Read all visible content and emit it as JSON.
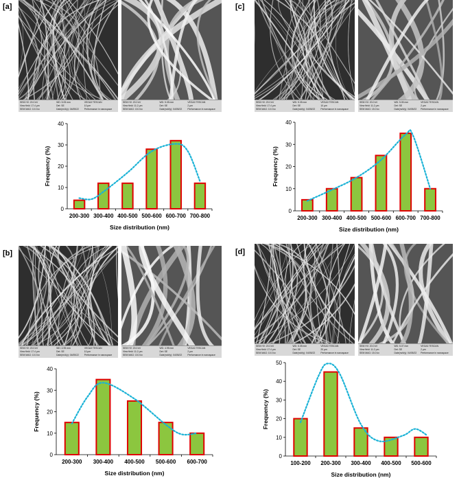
{
  "panels": [
    {
      "label": "[a]",
      "sem_left": {
        "line1": [
          "SEM HV: 20.0 kV",
          "WD: 5.05 mm",
          "VEGA3 TESCAN"
        ],
        "line2": [
          "View field: 17.4 μm",
          "Det: SE",
          "10 μm"
        ],
        "line3": [
          "SEM MAG: 10.0 kx",
          "Date(m/d/y): 04/05/22",
          "Performance in nanospace"
        ]
      },
      "sem_right": {
        "line1": [
          "SEM HV: 20.0 kV",
          "WD: 5.05 mm",
          "VEGA3 TESCAN"
        ],
        "line2": [
          "View field: 11.2 μm",
          "Det: SE",
          "2 μm"
        ],
        "line3": [
          "SEM MAG: 15.0 kx",
          "Date(m/d/y): 04/05/22",
          "Performance in nanospace"
        ]
      },
      "chart_data": {
        "type": "bar",
        "categories": [
          "200-300",
          "300-400",
          "400-500",
          "500-600",
          "600-700",
          "700-800"
        ],
        "values": [
          4,
          12,
          12,
          28,
          32,
          12
        ],
        "ylim": [
          0,
          40
        ],
        "yticks": [
          0,
          10,
          20,
          30,
          40
        ],
        "xlabel": "Size distribution (nm)",
        "ylabel": "Frequency (%)",
        "bar_fill": "#8cc63f",
        "bar_stroke": "#e00000",
        "fit_color": "#1ab2d6",
        "fit_curve": [
          [
            0,
            5
          ],
          [
            0.5,
            4.5
          ],
          [
            1,
            8
          ],
          [
            2,
            17
          ],
          [
            3,
            27
          ],
          [
            4,
            30.5
          ],
          [
            4.5,
            27
          ],
          [
            5,
            13
          ]
        ]
      }
    },
    {
      "label": "[c]",
      "sem_left": {
        "line1": [
          "SEM HV: 20.0 kV",
          "WD: 5.05 mm",
          "VEGA3 TESCAN"
        ],
        "line2": [
          "View field: 17.4 μm",
          "Det: SE",
          "10 μm"
        ],
        "line3": [
          "SEM MAG: 10.0 kx",
          "Date(m/d/y): 04/05/22",
          "Performance in nanospace"
        ]
      },
      "sem_right": {
        "line1": [
          "SEM HV: 20.0 kV",
          "WD: 5.05 mm",
          "VEGA3 TESCAN"
        ],
        "line2": [
          "View field: 11.2 μm",
          "Det: SE",
          "2 μm"
        ],
        "line3": [
          "SEM MAG: 15.0 kx",
          "Date(m/d/y): 04/05/22",
          "Performance in nanospace"
        ]
      },
      "chart_data": {
        "type": "bar",
        "categories": [
          "200-300",
          "300-400",
          "400-500",
          "500-600",
          "600-700",
          "700-800"
        ],
        "values": [
          5,
          10,
          15,
          25,
          35,
          10
        ],
        "ylim": [
          0,
          40
        ],
        "yticks": [
          0,
          10,
          20,
          30,
          40
        ],
        "xlabel": "Size distribution (nm)",
        "ylabel": "Frequency (%)",
        "bar_fill": "#8cc63f",
        "bar_stroke": "#e00000",
        "fit_color": "#1ab2d6",
        "fit_curve": [
          [
            0,
            4.5
          ],
          [
            1,
            9.5
          ],
          [
            2,
            15
          ],
          [
            3,
            23
          ],
          [
            4,
            34.5
          ],
          [
            4.3,
            34
          ],
          [
            5,
            10
          ]
        ]
      }
    },
    {
      "label": "[b]",
      "sem_left": {
        "line1": [
          "SEM HV: 20.0 kV",
          "WD: 4.95 mm",
          "VEGA3 TESCAN"
        ],
        "line2": [
          "View field: 17.4 μm",
          "Det: SE",
          "10 μm"
        ],
        "line3": [
          "SEM MAG: 10.0 kx",
          "Date(m/d/y): 04/05/22",
          "Performance in nanospace"
        ]
      },
      "sem_right": {
        "line1": [
          "SEM HV: 20.0 kV",
          "WD: 4.95 mm",
          "VEGA3 TESCAN"
        ],
        "line2": [
          "View field: 11.2 μm",
          "Det: SE",
          "2 μm"
        ],
        "line3": [
          "SEM MAG: 15.0 kx",
          "Date(m/d/y): 04/05/22",
          "Performance in nanospace"
        ]
      },
      "chart_data": {
        "type": "bar",
        "categories": [
          "200-300",
          "300-400",
          "400-500",
          "500-600",
          "600-700"
        ],
        "values": [
          15,
          35,
          25,
          15,
          10
        ],
        "ylim": [
          0,
          40
        ],
        "yticks": [
          0,
          10,
          20,
          30,
          40
        ],
        "xlabel": "Size distribution (nm)",
        "ylabel": "Frequency (%)",
        "bar_fill": "#8cc63f",
        "bar_stroke": "#e00000",
        "fit_color": "#1ab2d6",
        "fit_curve": [
          [
            0,
            14.5
          ],
          [
            0.5,
            27
          ],
          [
            1,
            33.5
          ],
          [
            2,
            26
          ],
          [
            3,
            14
          ],
          [
            3.5,
            9.5
          ],
          [
            4,
            10
          ]
        ]
      }
    },
    {
      "label": "[d]",
      "sem_left": {
        "line1": [
          "SEM HV: 20.0 kV",
          "WD: 5.05 mm",
          "VEGA3 TESCAN"
        ],
        "line2": [
          "View field: 17.4 μm",
          "Det: SE",
          "20 μm"
        ],
        "line3": [
          "SEM MAG: 10.0 kx",
          "Date(m/d/y): 04/05/22",
          "Performance in nanospace"
        ]
      },
      "sem_right": {
        "line1": [
          "SEM HV: 20.0 kV",
          "WD: 5.07 mm",
          "VEGA3 TESCAN"
        ],
        "line2": [
          "View field: 11.2 μm",
          "Det: SE",
          "2 μm"
        ],
        "line3": [
          "SEM MAG: 15.0 kx",
          "Date(m/d/y): 04/05/22",
          "Performance in nanospace"
        ]
      },
      "chart_data": {
        "type": "bar",
        "categories": [
          "100-200",
          "200-300",
          "300-400",
          "400-500",
          "500-600"
        ],
        "values": [
          20,
          45,
          15,
          10,
          10
        ],
        "ylim": [
          0,
          50
        ],
        "yticks": [
          0,
          10,
          20,
          30,
          40,
          50
        ],
        "xlabel": "Size distribution (nm)",
        "ylabel": "Frequency (%)",
        "bar_fill": "#8cc63f",
        "bar_stroke": "#e00000",
        "fit_color": "#1ab2d6",
        "fit_curve": [
          [
            0,
            18
          ],
          [
            0.6,
            43
          ],
          [
            0.9,
            49.5
          ],
          [
            1.3,
            44
          ],
          [
            2,
            17
          ],
          [
            2.6,
            8
          ],
          [
            3.4,
            11
          ],
          [
            3.8,
            14.5
          ],
          [
            4.2,
            11
          ]
        ]
      }
    }
  ]
}
